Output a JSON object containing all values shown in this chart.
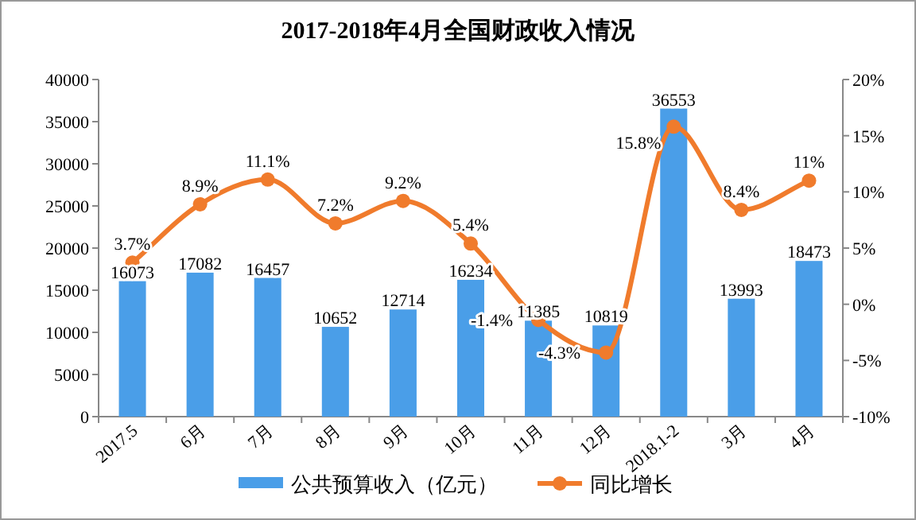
{
  "chart_data": {
    "type": "bar",
    "title": "2017-2018年4月全国财政收入情况",
    "categories": [
      "2017.5",
      "6月",
      "7月",
      "8月",
      "9月",
      "10月",
      "11月",
      "12月",
      "2018.1-2",
      "3月",
      "4月"
    ],
    "series": [
      {
        "name": "公共预算收入（亿元）",
        "color": "#4a9ee8",
        "values": [
          16073,
          17082,
          16457,
          10652,
          12714,
          16234,
          11385,
          10819,
          36553,
          13993,
          18473
        ]
      },
      {
        "name": "同比增长",
        "type": "line",
        "axis": "y2",
        "color": "#f07b2c",
        "marker": "circle",
        "values": [
          3.7,
          8.9,
          11.1,
          7.2,
          9.2,
          5.4,
          -1.4,
          -4.3,
          15.8,
          8.4,
          11
        ],
        "value_labels": [
          "3.7%",
          "8.9%",
          "11.1%",
          "7.2%",
          "9.2%",
          "5.4%",
          "-1.4%",
          "-4.3%",
          "15.8%",
          "8.4%",
          "11%"
        ]
      }
    ],
    "data_labels": true,
    "ylim": [
      0,
      40000
    ],
    "yticks": [
      0,
      5000,
      10000,
      15000,
      20000,
      25000,
      30000,
      35000,
      40000
    ],
    "y2lim": [
      -10,
      20
    ],
    "y2ticks": [
      {
        "value": -10,
        "label": "-10%"
      },
      {
        "value": -5,
        "label": "-5%"
      },
      {
        "value": 0,
        "label": "0%"
      },
      {
        "value": 5,
        "label": "5%"
      },
      {
        "value": 10,
        "label": "10%"
      },
      {
        "value": 15,
        "label": "15%"
      },
      {
        "value": 20,
        "label": "20%"
      }
    ],
    "grid": false,
    "legend": "bottom"
  }
}
